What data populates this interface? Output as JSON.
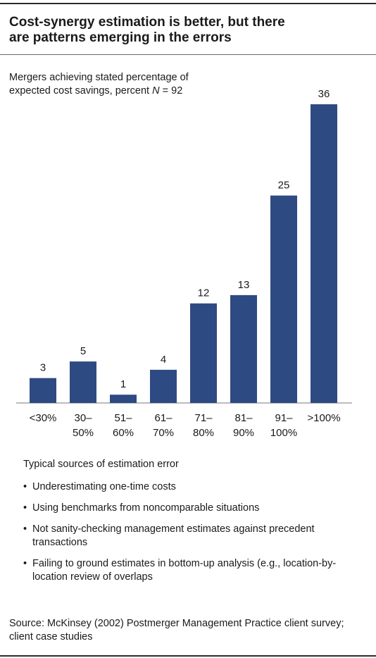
{
  "header": {
    "title_line1": "Cost-synergy estimation is better, but there",
    "title_line2": "are patterns emerging in the errors"
  },
  "chart_data": {
    "type": "bar",
    "subtitle_line1": "Mergers achieving stated percentage of",
    "subtitle_line2": "expected cost savings, percent N = 92",
    "categories": [
      [
        "<30%"
      ],
      [
        "30–",
        "50%"
      ],
      [
        "51–",
        "60%"
      ],
      [
        "61–",
        "70%"
      ],
      [
        "71–",
        "80%"
      ],
      [
        "81–",
        "90%"
      ],
      [
        "91–",
        "100%"
      ],
      [
        ">100%"
      ]
    ],
    "values": [
      3,
      5,
      1,
      4,
      12,
      13,
      25,
      36
    ],
    "ylim": [
      0,
      36
    ],
    "grid": false,
    "bar_color": "#2e4a82"
  },
  "notes": {
    "heading": "Typical sources of estimation error",
    "bullet_symbol": "•",
    "items": [
      "Underestimating one-time costs",
      "Using benchmarks from noncomparable situations",
      "Not sanity-checking management estimates against precedent transactions",
      "Failing to ground estimates in bottom-up analysis (e.g., location-by-location review of overlaps"
    ]
  },
  "source": "Source: McKinsey (2002) Postmerger Management Practice client survey; client case studies"
}
